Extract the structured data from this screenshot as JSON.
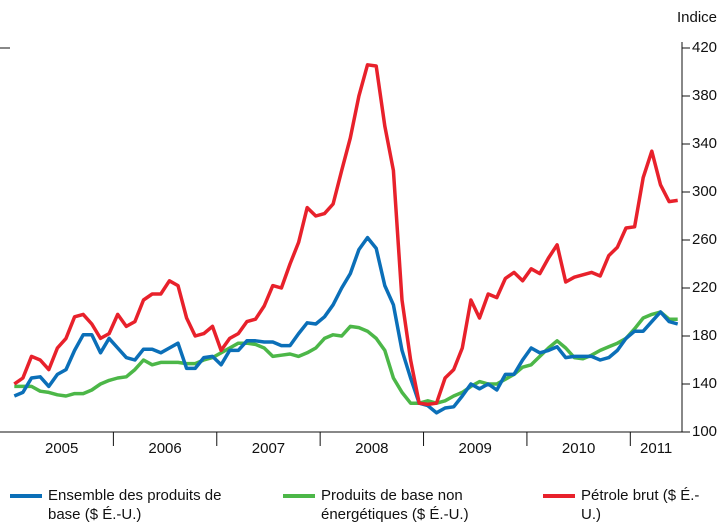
{
  "chart_data": {
    "type": "line",
    "y_label": "Indice",
    "categories": [
      null,
      null,
      null,
      null,
      null,
      null,
      "2005",
      null,
      null,
      null,
      null,
      null,
      null,
      null,
      null,
      null,
      null,
      null,
      "2006",
      null,
      null,
      null,
      null,
      null,
      null,
      null,
      null,
      null,
      null,
      null,
      "2007",
      null,
      null,
      null,
      null,
      null,
      null,
      null,
      null,
      null,
      null,
      null,
      "2008",
      null,
      null,
      null,
      null,
      null,
      null,
      null,
      null,
      null,
      null,
      null,
      "2009",
      null,
      null,
      null,
      null,
      null,
      null,
      null,
      null,
      null,
      null,
      null,
      "2010",
      null,
      null,
      null,
      null,
      null,
      null,
      null,
      null,
      "2011",
      null,
      null
    ],
    "ylim": [
      100,
      420
    ],
    "yticks": [
      100,
      140,
      180,
      220,
      260,
      300,
      340,
      380,
      420
    ],
    "grid": false,
    "legend": "bottom",
    "series": [
      {
        "name": "Ensemble des produits de base ($ É.-U.)",
        "color": "#0b6fb8",
        "values": [
          130,
          133,
          145,
          146,
          138,
          148,
          152,
          168,
          181,
          181,
          166,
          178,
          170,
          162,
          160,
          169,
          169,
          166,
          170,
          174,
          153,
          153,
          162,
          163,
          156,
          168,
          168,
          176,
          176,
          175,
          175,
          172,
          172,
          182,
          191,
          190,
          196,
          206,
          220,
          232,
          252,
          262,
          253,
          222,
          206,
          168,
          145,
          124,
          122,
          116,
          120,
          121,
          130,
          140,
          136,
          140,
          135,
          148,
          148,
          160,
          170,
          166,
          168,
          171,
          162,
          163,
          163,
          163,
          160,
          162,
          168,
          178,
          184,
          184,
          192,
          200,
          192,
          190
        ]
      },
      {
        "name": "Produits de base non énergétiques ($ É.-U.)",
        "color": "#4cb748",
        "values": [
          138,
          138,
          138,
          134,
          133,
          131,
          130,
          132,
          132,
          135,
          140,
          143,
          145,
          146,
          152,
          160,
          156,
          158,
          158,
          158,
          157,
          157,
          160,
          162,
          166,
          170,
          174,
          174,
          173,
          170,
          163,
          164,
          165,
          163,
          166,
          170,
          178,
          181,
          180,
          188,
          187,
          184,
          178,
          168,
          145,
          133,
          124,
          124,
          126,
          124,
          126,
          130,
          133,
          138,
          142,
          140,
          140,
          144,
          148,
          154,
          156,
          163,
          170,
          176,
          170,
          162,
          161,
          164,
          168,
          171,
          174,
          178,
          186,
          195,
          198,
          200,
          194,
          194
        ]
      },
      {
        "name": "Pétrole brut ($ É.-U.)",
        "color": "#e8212b",
        "values": [
          140,
          145,
          163,
          160,
          152,
          170,
          178,
          196,
          198,
          190,
          178,
          182,
          198,
          188,
          192,
          210,
          215,
          215,
          226,
          222,
          195,
          180,
          182,
          188,
          168,
          178,
          182,
          192,
          194,
          205,
          222,
          220,
          240,
          258,
          287,
          280,
          282,
          290,
          318,
          345,
          380,
          406,
          405,
          355,
          318,
          210,
          160,
          124,
          123,
          124,
          145,
          152,
          170,
          210,
          195,
          215,
          212,
          228,
          233,
          226,
          236,
          232,
          245,
          256,
          225,
          229,
          231,
          233,
          230,
          247,
          254,
          270,
          271,
          312,
          334,
          306,
          292,
          293
        ]
      }
    ]
  }
}
